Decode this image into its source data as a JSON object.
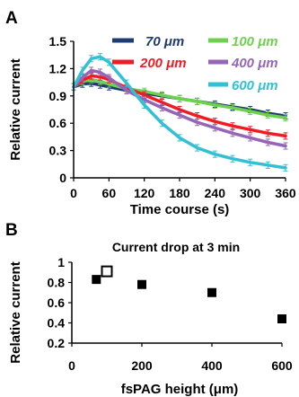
{
  "chart_data": [
    {
      "panel": "A",
      "type": "line",
      "title": "",
      "xlabel": "Time course (s)",
      "ylabel": "Relative current",
      "xlim": [
        0,
        360
      ],
      "ylim": [
        0,
        1.5
      ],
      "xticks": [
        "0",
        "60",
        "120",
        "180",
        "240",
        "300",
        "360"
      ],
      "yticks": [
        "0",
        "0.3",
        "0.6",
        "0.9",
        "1.2",
        "1.5"
      ],
      "x": [
        0,
        15,
        30,
        45,
        60,
        90,
        120,
        150,
        180,
        210,
        240,
        270,
        300,
        330,
        360
      ],
      "series": [
        {
          "name": "70 μm",
          "color": "#1f3b73",
          "values": [
            1.0,
            1.03,
            1.04,
            1.02,
            1.0,
            0.96,
            0.93,
            0.9,
            0.87,
            0.84,
            0.81,
            0.78,
            0.75,
            0.71,
            0.68
          ]
        },
        {
          "name": "100 μm",
          "color": "#6dd14f",
          "values": [
            1.0,
            1.06,
            1.08,
            1.06,
            1.03,
            0.98,
            0.95,
            0.91,
            0.87,
            0.84,
            0.8,
            0.77,
            0.73,
            0.69,
            0.66
          ]
        },
        {
          "name": "200 μm",
          "color": "#ef1c24",
          "values": [
            1.0,
            1.07,
            1.12,
            1.11,
            1.08,
            0.99,
            0.91,
            0.83,
            0.75,
            0.68,
            0.62,
            0.57,
            0.53,
            0.49,
            0.46
          ]
        },
        {
          "name": "400 μm",
          "color": "#9566b8",
          "values": [
            1.0,
            1.1,
            1.18,
            1.16,
            1.1,
            0.96,
            0.86,
            0.77,
            0.69,
            0.61,
            0.55,
            0.49,
            0.44,
            0.39,
            0.35
          ]
        },
        {
          "name": "600 μm",
          "color": "#31c0d4",
          "values": [
            1.0,
            1.18,
            1.31,
            1.33,
            1.27,
            1.04,
            0.8,
            0.6,
            0.44,
            0.33,
            0.26,
            0.21,
            0.17,
            0.14,
            0.11
          ]
        }
      ],
      "legend": "top"
    },
    {
      "panel": "B",
      "type": "scatter",
      "title": "Current drop at 3 min",
      "xlabel": "fsPAG height (μm)",
      "ylabel": "Relative current",
      "xlim": [
        0,
        600
      ],
      "ylim": [
        0.2,
        1.0
      ],
      "xticks": [
        "0",
        "200",
        "400",
        "600"
      ],
      "yticks": [
        "0.2",
        "0.4",
        "0.6",
        "0.8",
        "1"
      ],
      "points": [
        {
          "x": 70,
          "y": 0.83,
          "style": "filled"
        },
        {
          "x": 100,
          "y": 0.91,
          "style": "open"
        },
        {
          "x": 200,
          "y": 0.78,
          "style": "filled"
        },
        {
          "x": 400,
          "y": 0.7,
          "style": "filled"
        },
        {
          "x": 600,
          "y": 0.44,
          "style": "filled"
        }
      ]
    }
  ]
}
